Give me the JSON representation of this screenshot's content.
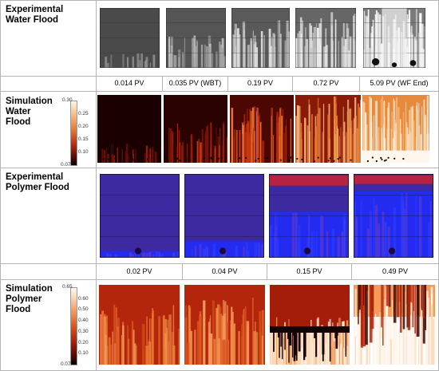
{
  "rows": {
    "exp_water": {
      "label": "Experimental\nWater Flood"
    },
    "sim_water": {
      "label": "Simulation\nWater\nFlood"
    },
    "exp_polymer": {
      "label": "Experimental\nPolymer Flood"
    },
    "sim_polymer": {
      "label": "Simulation\nPolymer\nFlood"
    }
  },
  "water_captions": [
    "0.014 PV",
    "0.035 PV (WBT)",
    "0.19 PV",
    "0.72 PV",
    "5.09 PV (WF End)"
  ],
  "polymer_captions": [
    "0.02 PV",
    "0.04 PV",
    "0.15 PV",
    "0.49 PV"
  ],
  "colorbar_water": {
    "ticks": [
      "0.30",
      "0.25",
      "0.20",
      "0.15",
      "0.10",
      "0.07"
    ]
  },
  "colorbar_polymer": {
    "ticks": [
      "0.65",
      "0.60",
      "0.50",
      "0.40",
      "0.30",
      "0.20",
      "0.10",
      "0.07"
    ]
  },
  "colors": {
    "heat_dark": "#1a0000",
    "heat_mid": "#b4260c",
    "heat_light": "#f7c48e",
    "polymer_violet": "#3e2aa0",
    "polymer_blue": "#1e2cff",
    "polymer_red": "#e02020",
    "grey_dark": "#3a3a3a",
    "grey_light": "#d8d8d8",
    "grid_line": "#b5b5b5"
  }
}
